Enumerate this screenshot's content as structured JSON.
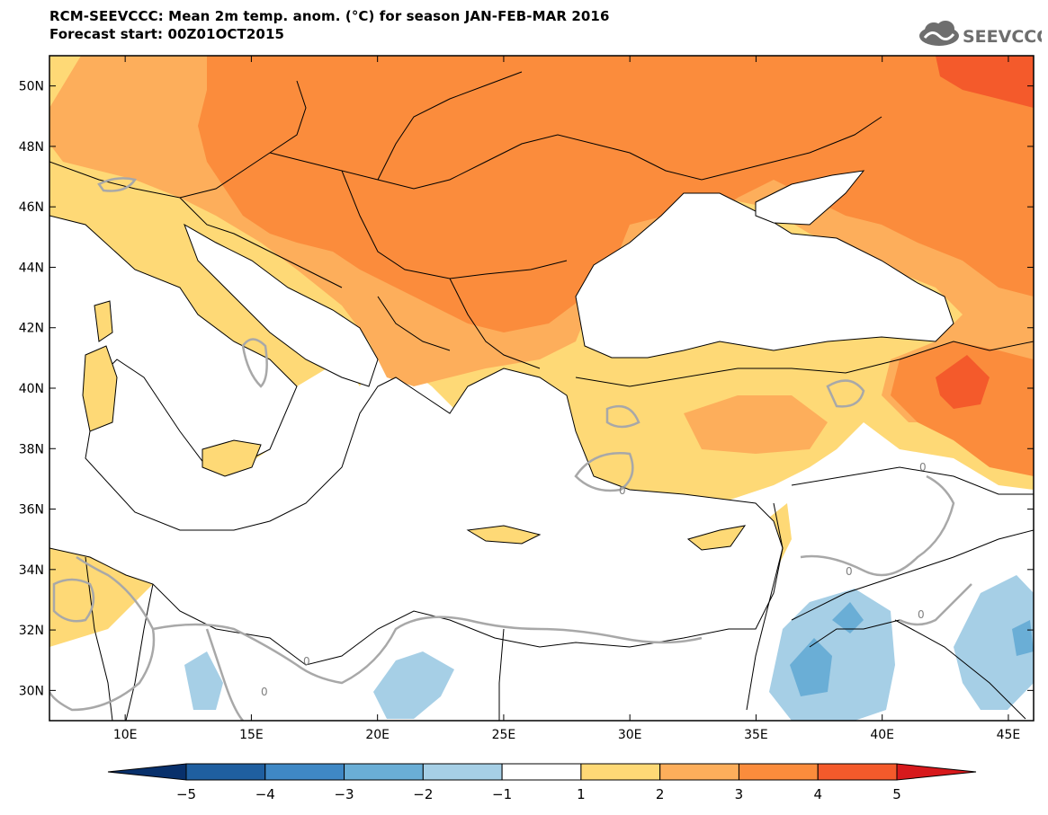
{
  "title": {
    "line1": "RCM-SEEVCCC: Mean 2m temp. anom. (°C) for season JAN-FEB-MAR 2016",
    "line2": "Forecast start: 00Z01OCT2015"
  },
  "logo": {
    "text": "SEEVCCC",
    "color": "#6e6e6e"
  },
  "map": {
    "extent": {
      "lon": [
        7,
        46
      ],
      "lat": [
        29,
        51
      ]
    },
    "lat_ticks": [
      {
        "value": 30,
        "label": "30N"
      },
      {
        "value": 32,
        "label": "32N"
      },
      {
        "value": 34,
        "label": "34N"
      },
      {
        "value": 36,
        "label": "36N"
      },
      {
        "value": 38,
        "label": "38N"
      },
      {
        "value": 40,
        "label": "40N"
      },
      {
        "value": 42,
        "label": "42N"
      },
      {
        "value": 44,
        "label": "44N"
      },
      {
        "value": 46,
        "label": "46N"
      },
      {
        "value": 48,
        "label": "48N"
      },
      {
        "value": 50,
        "label": "50N"
      }
    ],
    "lon_ticks": [
      {
        "value": 10,
        "label": "10E"
      },
      {
        "value": 15,
        "label": "15E"
      },
      {
        "value": 20,
        "label": "20E"
      },
      {
        "value": 25,
        "label": "25E"
      },
      {
        "value": 30,
        "label": "30E"
      },
      {
        "value": 35,
        "label": "35E"
      },
      {
        "value": 40,
        "label": "40E"
      },
      {
        "value": 45,
        "label": "45E"
      }
    ],
    "contour_label": "0",
    "contour_color": "#a8a8a8"
  },
  "colorbar": {
    "levels": [
      "-5",
      "-4",
      "-3",
      "-2",
      "-1",
      "1",
      "2",
      "3",
      "4",
      "5"
    ],
    "colors": [
      "#08306b",
      "#1f5fa0",
      "#3f88c5",
      "#6aaed6",
      "#a6cfe6",
      "#ffffff",
      "#fed976",
      "#fdae5b",
      "#fb8c3c",
      "#f45a2b",
      "#d7191c"
    ]
  }
}
